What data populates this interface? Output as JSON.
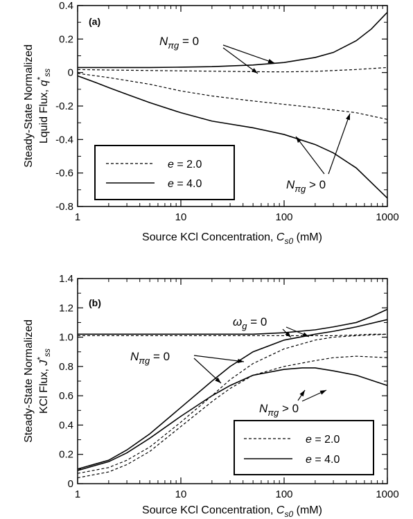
{
  "chart_data": [
    {
      "type": "line",
      "panel_label": "(a)",
      "xlabel": "Source KCl Concentration, C_s0 (mM)",
      "xlabel_parts": {
        "pre": "Source KCl Concentration, ",
        "var": "C",
        "sub": "s0",
        "post": " (mM)"
      },
      "ylabel_line1": "Steady-State Normalized",
      "ylabel_line2": {
        "pre": "Lquid Flux, ",
        "var": "q",
        "sup": "*",
        "sub": "ss"
      },
      "x_scale": "log",
      "xlim": [
        1,
        1000
      ],
      "ylim": [
        -0.8,
        0.4
      ],
      "x_ticks": [
        1,
        10,
        100,
        1000
      ],
      "x_tick_labels": [
        "1",
        "10",
        "100",
        "1000"
      ],
      "y_ticks": [
        -0.8,
        -0.6,
        -0.4,
        -0.2,
        0,
        0.2,
        0.4
      ],
      "y_tick_labels": [
        "-0.8",
        "-0.6",
        "-0.4",
        "-0.2",
        "0",
        "0.2",
        "0.4"
      ],
      "legend": {
        "placement": "bottom-left",
        "entries": [
          {
            "var": "e",
            "text": " = 2.0",
            "style": "dashed"
          },
          {
            "var": "e",
            "text": " = 4.0",
            "style": "solid"
          }
        ]
      },
      "annotations": [
        {
          "var": "N",
          "sub": "πg",
          "rel": " = 0"
        },
        {
          "var": "N",
          "sub": "πg",
          "rel": " > 0"
        }
      ],
      "series": [
        {
          "style": "solid",
          "x": [
            1,
            2,
            5,
            10,
            20,
            50,
            100,
            200,
            300,
            500,
            700,
            1000
          ],
          "y": [
            0.03,
            0.03,
            0.03,
            0.032,
            0.035,
            0.045,
            0.06,
            0.09,
            0.12,
            0.19,
            0.26,
            0.36
          ]
        },
        {
          "style": "dashed",
          "x": [
            1,
            2,
            5,
            10,
            20,
            50,
            100,
            200,
            500,
            1000
          ],
          "y": [
            0.018,
            0.015,
            0.012,
            0.01,
            0.008,
            0.005,
            0.004,
            0.007,
            0.018,
            0.03
          ]
        },
        {
          "style": "dashed",
          "x": [
            1,
            2,
            5,
            10,
            20,
            50,
            100,
            200,
            500,
            1000
          ],
          "y": [
            -0.005,
            -0.03,
            -0.07,
            -0.11,
            -0.14,
            -0.17,
            -0.19,
            -0.21,
            -0.24,
            -0.28
          ]
        },
        {
          "style": "solid",
          "x": [
            1,
            1.5,
            2,
            3,
            5,
            10,
            20,
            50,
            100,
            200,
            300,
            500,
            1000
          ],
          "y": [
            -0.02,
            -0.06,
            -0.09,
            -0.13,
            -0.18,
            -0.24,
            -0.29,
            -0.33,
            -0.37,
            -0.43,
            -0.48,
            -0.57,
            -0.75
          ]
        }
      ]
    },
    {
      "type": "line",
      "panel_label": "(b)",
      "xlabel": "Source KCl Concentration, C_s0 (mM)",
      "xlabel_parts": {
        "pre": "Source KCl Concentration, ",
        "var": "C",
        "sub": "s0",
        "post": " (mM)"
      },
      "ylabel_line1": "Steady-State Normalized",
      "ylabel_line2": {
        "pre": "KCl Flux, ",
        "var": "J",
        "sup": "*",
        "sub": "ss"
      },
      "x_scale": "log",
      "xlim": [
        1,
        1000
      ],
      "ylim": [
        0,
        1.4
      ],
      "x_ticks": [
        1,
        10,
        100,
        1000
      ],
      "x_tick_labels": [
        "1",
        "10",
        "100",
        "1000"
      ],
      "y_ticks": [
        0,
        0.2,
        0.4,
        0.6,
        0.8,
        1.0,
        1.2,
        1.4
      ],
      "y_tick_labels": [
        "0",
        "0.2",
        "0.4",
        "0.6",
        "0.8",
        "1.0",
        "1.2",
        "1.4"
      ],
      "legend": {
        "placement": "bottom-right",
        "entries": [
          {
            "var": "e",
            "text": " = 2.0",
            "style": "dashed"
          },
          {
            "var": "e",
            "text": " = 4.0",
            "style": "solid"
          }
        ]
      },
      "annotations": [
        {
          "var": "ω",
          "sub": "g",
          "rel": " = 0"
        },
        {
          "var": "N",
          "sub": "πg",
          "rel": " = 0"
        },
        {
          "var": "N",
          "sub": "πg",
          "rel": " > 0"
        }
      ],
      "series": [
        {
          "style": "solid",
          "x": [
            1,
            10,
            50,
            100,
            200,
            300,
            500,
            700,
            1000
          ],
          "y": [
            1.02,
            1.02,
            1.02,
            1.03,
            1.05,
            1.07,
            1.1,
            1.14,
            1.19
          ]
        },
        {
          "style": "dashed",
          "x": [
            1,
            10,
            50,
            100,
            200,
            300,
            500,
            700,
            1000
          ],
          "y": [
            1.01,
            1.01,
            1.01,
            1.01,
            1.01,
            1.01,
            1.015,
            1.02,
            1.02
          ]
        },
        {
          "style": "solid",
          "x": [
            1,
            2,
            3,
            5,
            10,
            20,
            30,
            50,
            100,
            200,
            300,
            500,
            1000
          ],
          "y": [
            0.1,
            0.16,
            0.23,
            0.34,
            0.52,
            0.7,
            0.8,
            0.9,
            0.98,
            1.02,
            1.04,
            1.07,
            1.12
          ]
        },
        {
          "style": "dashed",
          "x": [
            1,
            2,
            3,
            5,
            10,
            20,
            30,
            50,
            100,
            200,
            300,
            500,
            1000
          ],
          "y": [
            0.07,
            0.11,
            0.16,
            0.25,
            0.42,
            0.6,
            0.71,
            0.82,
            0.92,
            0.98,
            1.0,
            1.01,
            1.02
          ]
        },
        {
          "style": "solid",
          "x": [
            1,
            2,
            3,
            5,
            10,
            20,
            30,
            50,
            100,
            150,
            200,
            300,
            500,
            1000
          ],
          "y": [
            0.09,
            0.15,
            0.21,
            0.31,
            0.46,
            0.6,
            0.67,
            0.74,
            0.78,
            0.79,
            0.79,
            0.77,
            0.74,
            0.67
          ]
        },
        {
          "style": "dashed",
          "x": [
            1,
            2,
            3,
            5,
            10,
            20,
            30,
            50,
            100,
            200,
            300,
            500,
            1000
          ],
          "y": [
            0.04,
            0.08,
            0.13,
            0.22,
            0.39,
            0.56,
            0.65,
            0.74,
            0.8,
            0.84,
            0.86,
            0.87,
            0.86
          ]
        }
      ]
    }
  ]
}
